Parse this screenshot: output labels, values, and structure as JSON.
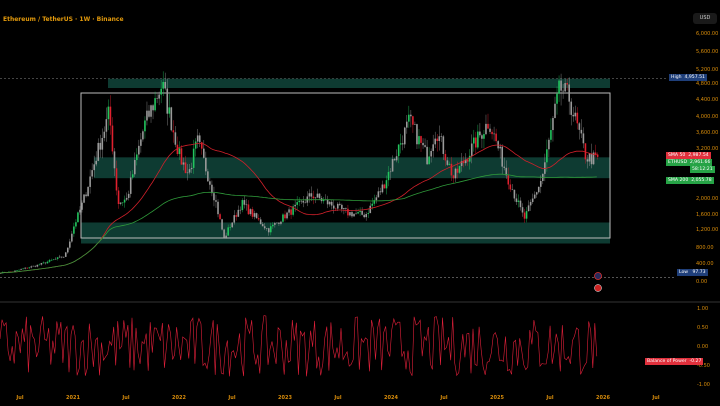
{
  "header": {
    "title": "Ethereum / TetherUS · 1W · Binance",
    "currency_button": "USD"
  },
  "colors": {
    "up": "#22c55e",
    "down": "#e0202e",
    "neutral": "#9a9a9a",
    "sma_fast": "#d0202a",
    "sma_slow": "#2f9a3a",
    "zone": "#0e3b32",
    "bop": "#e0203a"
  },
  "price_axis": [
    "6,000.00",
    "5,600.00",
    "5,200.00",
    "4,800.00",
    "4,400.00",
    "4,000.00",
    "3,600.00",
    "3,200.00",
    "2,000.00",
    "1,600.00",
    "1,200.00",
    "800.00",
    "400.00",
    "0.00"
  ],
  "price_tags": {
    "high": {
      "label": "High",
      "value": "4,957.51"
    },
    "sma_fast": {
      "label": "SMA 50",
      "value": "2,987.54"
    },
    "last": {
      "label": "ETHUSD",
      "value": "2,961.66",
      "countdown": "58:12:21"
    },
    "sma_slow": {
      "label": "SMA 200",
      "value": "2,055.78"
    },
    "low": {
      "label": "Low",
      "value": "97.73"
    }
  },
  "oscillator": {
    "name": "Balance of Power",
    "value": "-0.27",
    "axis": [
      "1.00",
      "0.50",
      "0.00",
      "-0.50",
      "-1.00"
    ]
  },
  "time_axis": [
    "Jul",
    "2021",
    "Jul",
    "2022",
    "Jul",
    "2023",
    "Jul",
    "2024",
    "Jul",
    "2025",
    "Jul",
    "2026",
    "Jul"
  ],
  "chart_data": {
    "type": "candlestick",
    "title": "Ethereum / TetherUS · 1W · Binance",
    "interval": "1W",
    "y_scale": "price",
    "ylim": [
      0,
      6000
    ],
    "key_closes": [
      [
        "2020-06",
        230
      ],
      [
        "2020-09",
        380
      ],
      [
        "2020-12",
        600
      ],
      [
        "2021-01",
        1300
      ],
      [
        "2021-02",
        1900
      ],
      [
        "2021-05",
        4100
      ],
      [
        "2021-06",
        1900
      ],
      [
        "2021-07",
        2000
      ],
      [
        "2021-09",
        3800
      ],
      [
        "2021-11",
        4800
      ],
      [
        "2022-01",
        3000
      ],
      [
        "2022-02",
        2600
      ],
      [
        "2022-03",
        3400
      ],
      [
        "2022-05",
        2000
      ],
      [
        "2022-06",
        1000
      ],
      [
        "2022-08",
        1900
      ],
      [
        "2022-11",
        1200
      ],
      [
        "2023-01",
        1600
      ],
      [
        "2023-04",
        2100
      ],
      [
        "2023-08",
        1650
      ],
      [
        "2023-10",
        1600
      ],
      [
        "2023-12",
        2300
      ],
      [
        "2024-03",
        3900
      ],
      [
        "2024-05",
        3000
      ],
      [
        "2024-06",
        3700
      ],
      [
        "2024-08",
        2500
      ],
      [
        "2024-12",
        3900
      ],
      [
        "2025-02",
        2600
      ],
      [
        "2025-04",
        1500
      ],
      [
        "2025-06",
        2500
      ],
      [
        "2025-08",
        4700
      ],
      [
        "2025-09",
        4500
      ],
      [
        "2025-11",
        3000
      ],
      [
        "2025-12",
        2962
      ]
    ],
    "series": [
      {
        "name": "SMA 50"
      },
      {
        "name": "SMA 200"
      },
      {
        "name": "Balance of Power"
      }
    ],
    "zones": [
      [
        4700,
        4950
      ],
      [
        2500,
        3000
      ],
      [
        900,
        1400
      ]
    ]
  }
}
